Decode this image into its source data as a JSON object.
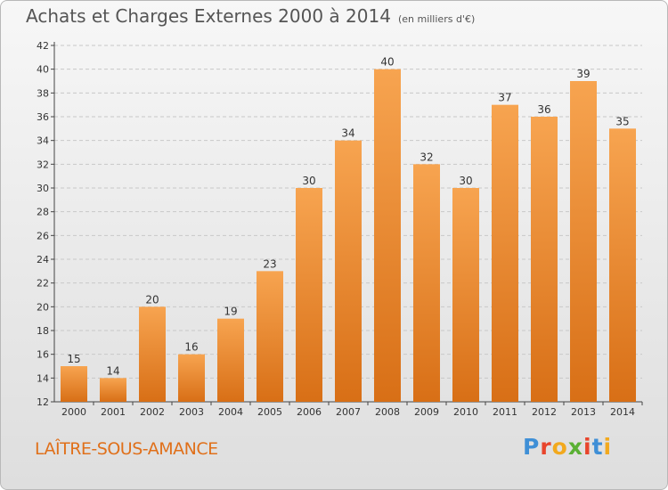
{
  "header": {
    "title": "Achats et Charges Externes 2000 à 2014",
    "unit": "(en milliers d'€)"
  },
  "footer": {
    "commune": "LAÎTRE-SOUS-AMANCE",
    "logo": "Proxiti",
    "logo_colors": [
      "#3f8fd6",
      "#e8452c",
      "#f2a91e",
      "#5ab034",
      "#e8452c",
      "#3f8fd6",
      "#f2a91e"
    ]
  },
  "colors": {
    "bar_light": "#f7a450",
    "bar_dark": "#d86f16",
    "axis": "#444444",
    "grid": "#c8c8c8"
  },
  "chart_data": {
    "type": "bar",
    "title": "Achats et Charges Externes 2000 à 2014",
    "subtitle": "(en milliers d'€)",
    "categories": [
      "2000",
      "2001",
      "2002",
      "2003",
      "2004",
      "2005",
      "2006",
      "2007",
      "2008",
      "2009",
      "2010",
      "2011",
      "2012",
      "2013",
      "2014"
    ],
    "values": [
      15,
      14,
      20,
      16,
      19,
      23,
      30,
      34,
      40,
      32,
      30,
      37,
      36,
      39,
      35
    ],
    "xlabel": "",
    "ylabel": "",
    "ylim": [
      12,
      42
    ],
    "yticks": [
      12,
      14,
      16,
      18,
      20,
      22,
      24,
      26,
      28,
      30,
      32,
      34,
      36,
      38,
      40,
      42
    ],
    "grid": "horizontal dashed",
    "data_labels": true
  }
}
